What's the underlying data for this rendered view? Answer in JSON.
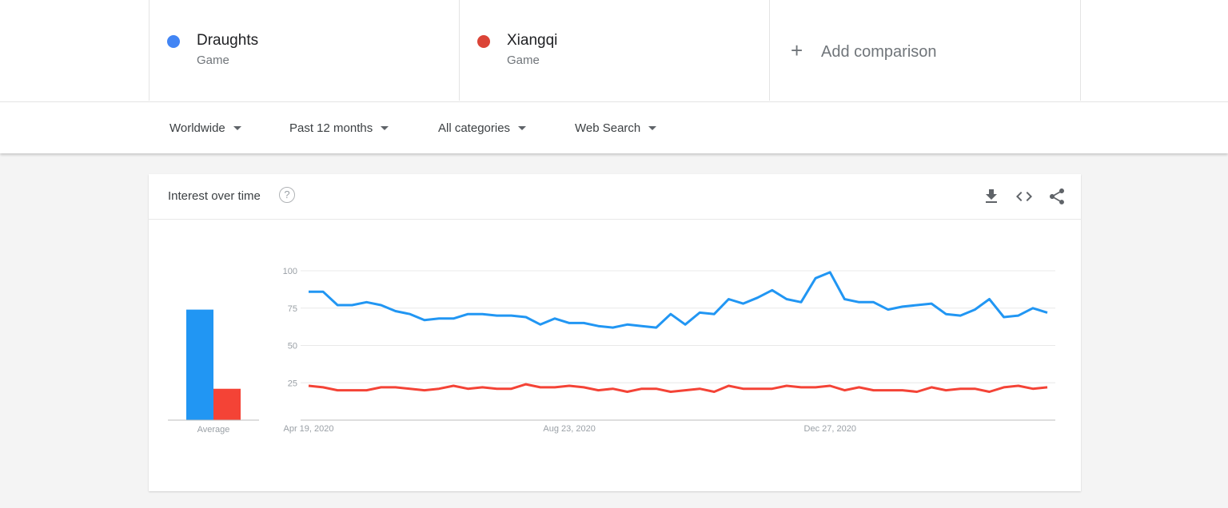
{
  "terms": [
    {
      "name": "Draughts",
      "type": "Game",
      "color": "#4285f4"
    },
    {
      "name": "Xiangqi",
      "type": "Game",
      "color": "#db4437"
    }
  ],
  "add_comparison": {
    "label": "Add comparison",
    "icon": "plus-icon"
  },
  "filters": {
    "region": "Worldwide",
    "time": "Past 12 months",
    "category": "All categories",
    "search_type": "Web Search"
  },
  "card": {
    "title": "Interest over time",
    "icons": [
      "help-icon",
      "download-icon",
      "embed-icon",
      "share-icon"
    ]
  },
  "chart_data": {
    "type": "line",
    "x_tick_labels": [
      "Apr 19, 2020",
      "Aug 23, 2020",
      "Dec 27, 2020"
    ],
    "y_ticks": [
      25,
      50,
      75,
      100
    ],
    "ylim": [
      0,
      100
    ],
    "grid": true,
    "series": [
      {
        "name": "Draughts",
        "color": "#2196f3",
        "values": [
          86,
          86,
          77,
          77,
          79,
          77,
          73,
          71,
          67,
          68,
          68,
          71,
          71,
          70,
          70,
          69,
          64,
          68,
          65,
          65,
          63,
          62,
          64,
          63,
          62,
          71,
          64,
          72,
          71,
          81,
          78,
          82,
          87,
          81,
          79,
          95,
          99,
          81,
          79,
          79,
          74,
          76,
          77,
          78,
          71,
          70,
          74,
          81,
          69,
          70,
          75,
          72
        ]
      },
      {
        "name": "Xiangqi",
        "color": "#f44336",
        "values": [
          23,
          22,
          20,
          20,
          20,
          22,
          22,
          21,
          20,
          21,
          23,
          21,
          22,
          21,
          21,
          24,
          22,
          22,
          23,
          22,
          20,
          21,
          19,
          21,
          21,
          19,
          20,
          21,
          19,
          23,
          21,
          21,
          21,
          23,
          22,
          22,
          23,
          20,
          22,
          20,
          20,
          20,
          19,
          22,
          20,
          21,
          21,
          19,
          22,
          23,
          21,
          22
        ]
      }
    ],
    "average": {
      "label": "Average",
      "values": [
        74,
        21
      ]
    }
  }
}
